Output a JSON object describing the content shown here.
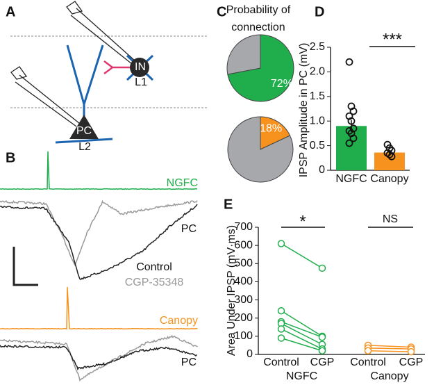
{
  "diagram": {
    "panel": "A",
    "interneuron": "IN",
    "interneuron_layer": "L1",
    "pyramidal": "PC",
    "pyramidal_layer": "L2"
  },
  "traces": {
    "panel": "B",
    "labels": [
      "NGFC",
      "PC",
      "Control",
      "CGP-35348",
      "Canopy",
      "PC"
    ]
  },
  "chart_data": [
    {
      "type": "pie",
      "panel": "C",
      "title": "Probability of connection",
      "values": [
        72,
        28
      ],
      "value_labels": [
        "72%",
        null
      ],
      "colors": [
        "#1fae4b",
        "#a6a8ab"
      ]
    },
    {
      "type": "pie",
      "values": [
        18,
        82
      ],
      "value_labels": [
        "18%",
        null
      ],
      "colors": [
        "#f7921e",
        "#a6a8ab"
      ]
    },
    {
      "type": "bar",
      "panel": "D",
      "ylabel": "IPSP Amplitude in PC (mV)",
      "categories": [
        "NGFC",
        "Canopy"
      ],
      "values": [
        0.9,
        0.36
      ],
      "errors": [
        0.12,
        0.04
      ],
      "colors": [
        "#1fae4b",
        "#f7921e"
      ],
      "points": [
        [
          2.2,
          1.3,
          1.2,
          1.1,
          1.0,
          0.85,
          0.8,
          0.75,
          0.65,
          0.55
        ],
        [
          0.52,
          0.45,
          0.4,
          0.35,
          0.32,
          0.28
        ]
      ],
      "ylim": [
        0,
        2.5
      ],
      "yticks": [
        0,
        0.5,
        {
          "value": 1,
          "label": "1.0"
        },
        {
          "value": 1.5,
          "label": "1.5"
        },
        {
          "value": 2,
          "label": "2.0"
        },
        2.5
      ],
      "annotation": "***"
    },
    {
      "type": "line",
      "panel": "E",
      "ylabel": "Area Under IPSP (mV·ms)",
      "categories": [
        "Control",
        "CGP",
        "Control",
        "CGP"
      ],
      "groups": [
        "NGFC",
        "Canopy"
      ],
      "series": [
        {
          "color": "#1fae4b",
          "values": [
            [
              610,
              475
            ],
            [
              240,
              100
            ],
            [
              180,
              95
            ],
            [
              170,
              55
            ],
            [
              140,
              30
            ],
            [
              90,
              20
            ]
          ]
        },
        {
          "color": "#f7921e",
          "values": [
            [
              50,
              40
            ],
            [
              35,
              30
            ],
            [
              20,
              15
            ]
          ]
        }
      ],
      "ylim": [
        0,
        700
      ],
      "yticks": [
        0,
        100,
        200,
        300,
        400,
        500,
        600,
        700
      ],
      "annotations": [
        "*",
        "NS"
      ]
    }
  ]
}
